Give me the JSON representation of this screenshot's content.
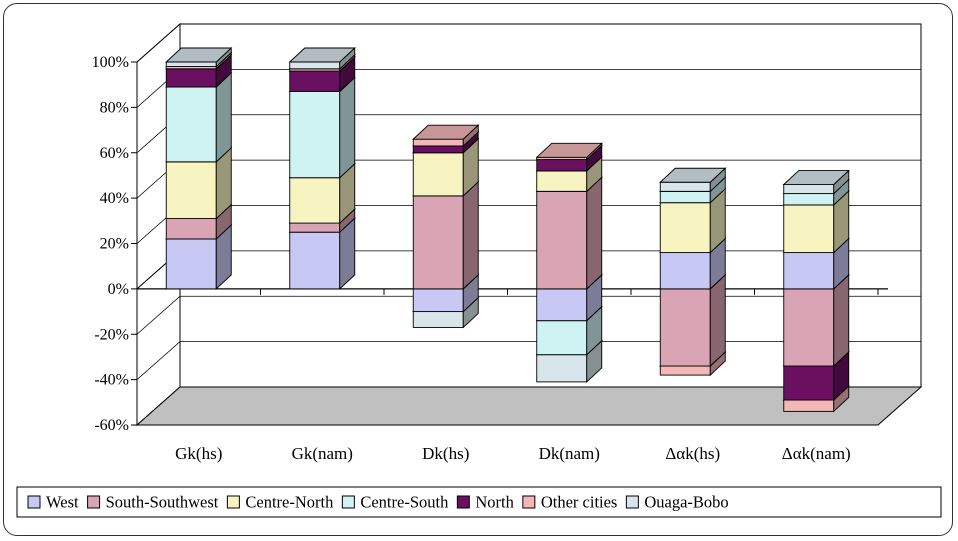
{
  "chart_data": {
    "type": "bar",
    "stacked": true,
    "three_d": true,
    "categories": [
      "Gk(hs)",
      "Gk(nam)",
      "Dk(hs)",
      "Dk(nam)",
      "Δαk(hs)",
      "Δαk(nam)"
    ],
    "y_ticks": [
      "100%",
      "80%",
      "60%",
      "40%",
      "20%",
      "0%",
      "-20%",
      "-40%",
      "-60%"
    ],
    "ylim": [
      -60,
      100
    ],
    "grid": true,
    "legend_position": "bottom",
    "series": [
      {
        "name": "West",
        "color": "#c8c8f5",
        "values": [
          22,
          25,
          -10,
          -14,
          16,
          16
        ]
      },
      {
        "name": "South-Southwest",
        "color": "#d9a5b5",
        "values": [
          9,
          4,
          41,
          43,
          -34,
          -34
        ]
      },
      {
        "name": "Centre-North",
        "color": "#f8f4c2",
        "values": [
          25,
          20,
          19,
          9,
          22,
          21
        ]
      },
      {
        "name": "Centre-South",
        "color": "#cff2f2",
        "values": [
          33,
          38,
          0,
          -15,
          5,
          5
        ]
      },
      {
        "name": "North",
        "color": "#6b0f61",
        "values": [
          8,
          9,
          3,
          5,
          0,
          -15
        ]
      },
      {
        "name": "Other cities",
        "color": "#f3b7b7",
        "values": [
          1,
          1,
          3,
          1,
          -4,
          -5
        ]
      },
      {
        "name": "Ouaga-Bobo",
        "color": "#d8e6ec",
        "values": [
          2,
          3,
          -7,
          -12,
          4,
          4
        ]
      }
    ]
  }
}
